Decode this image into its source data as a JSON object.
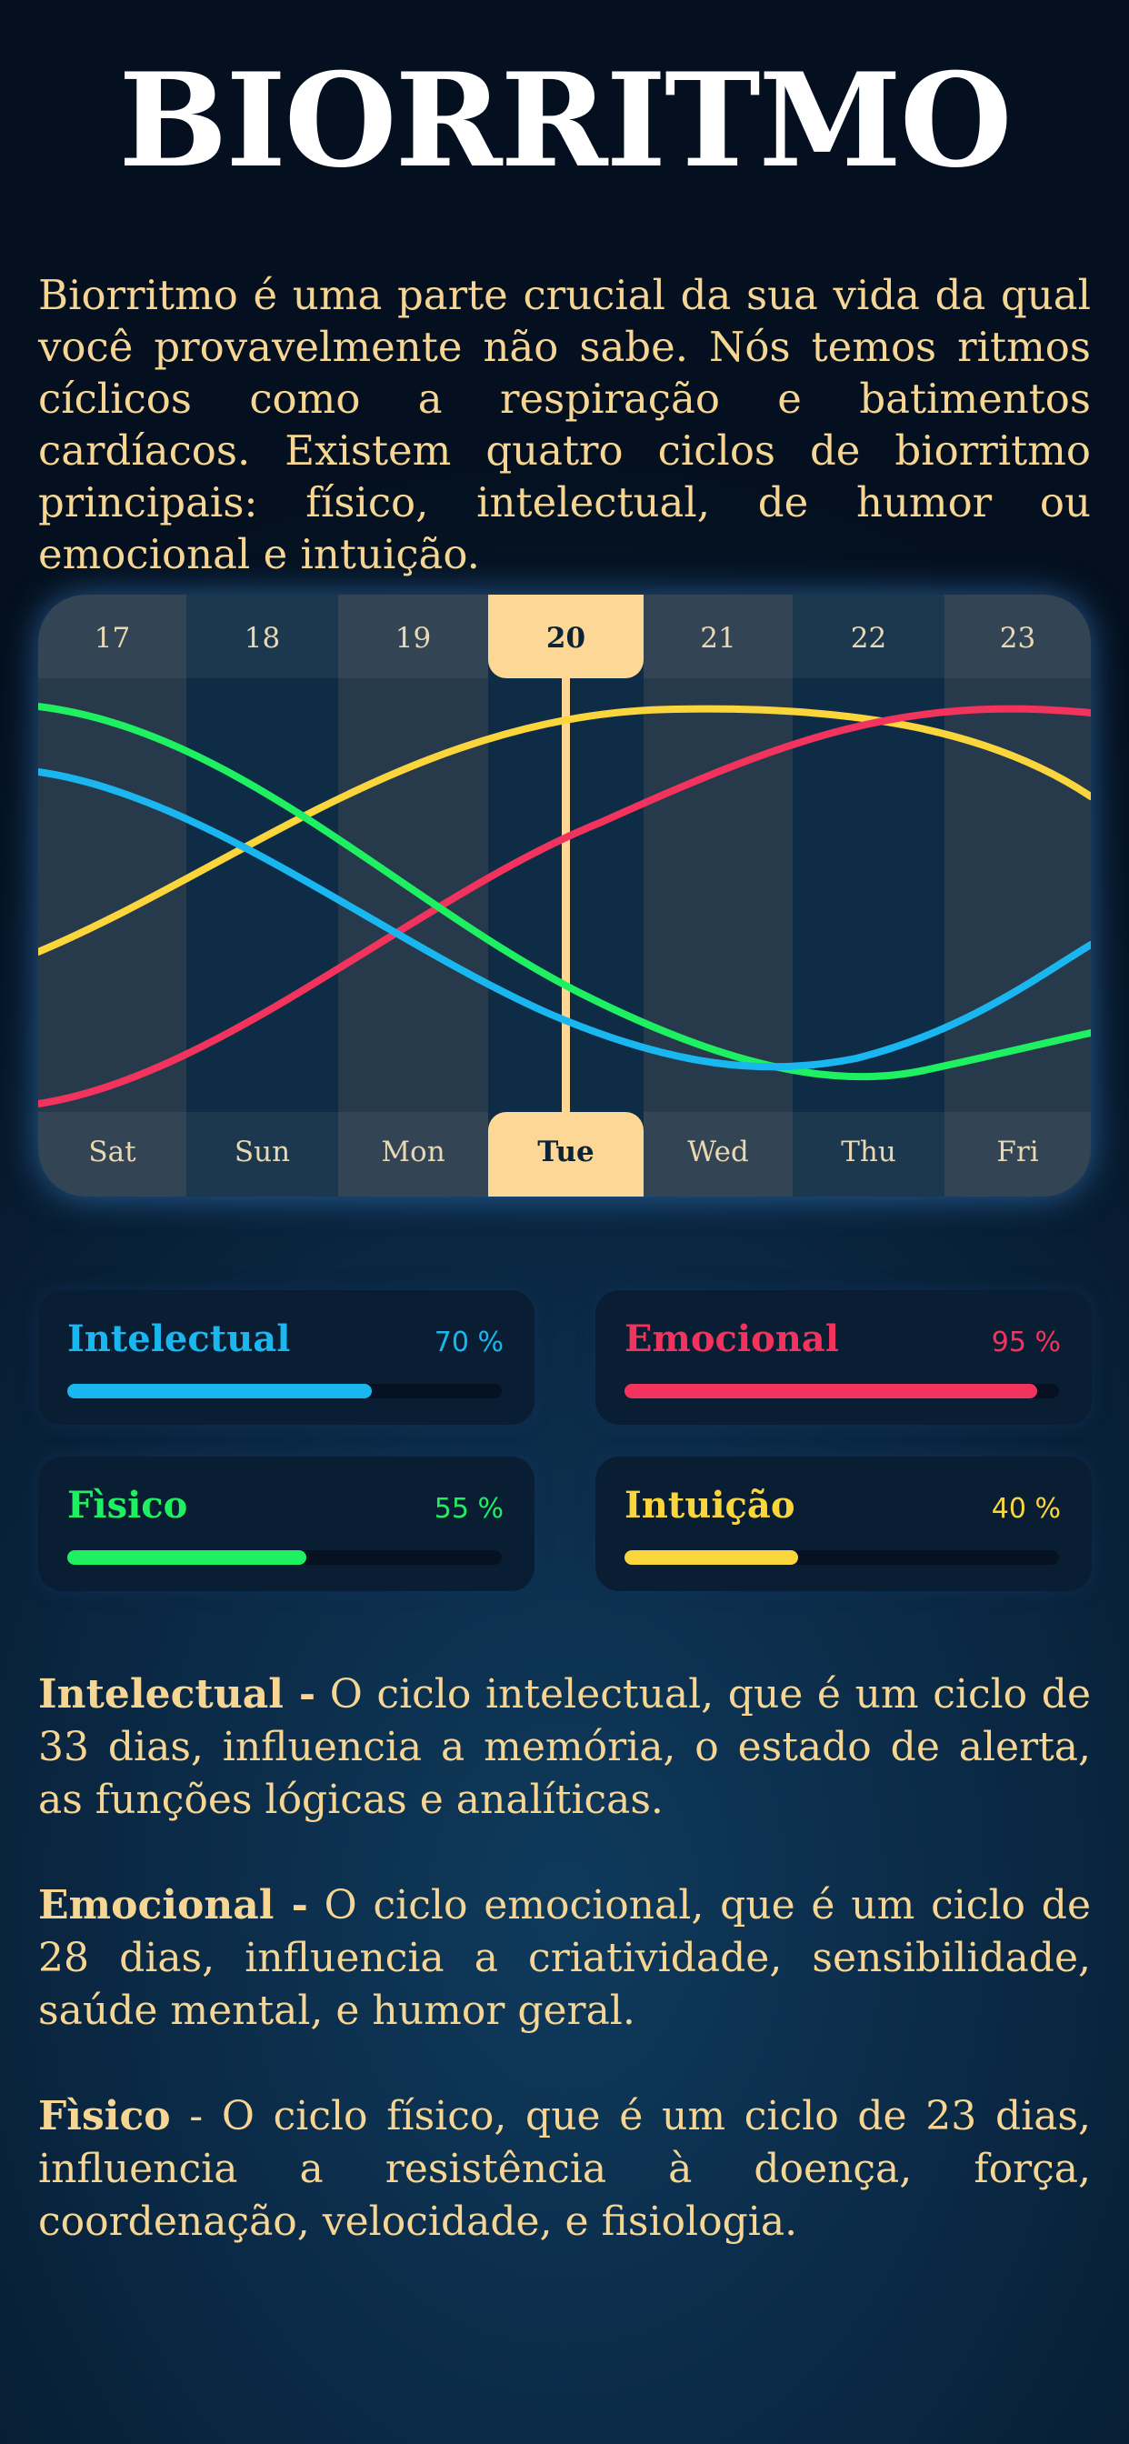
{
  "title": "BIORRITMO",
  "intro": "Biorritmo é uma parte crucial da sua vida da qual você provavelmente não sabe. Nós temos ritmos cíclicos como a respiração e batimentos cardíacos. Existem quatro ciclos de biorritmo principais: físico, intelectual, de humor ou emocional e intuição.",
  "chart": {
    "dates": [
      "17",
      "18",
      "19",
      "20",
      "21",
      "22",
      "23"
    ],
    "weekdays": [
      "Sat",
      "Sun",
      "Mon",
      "Tue",
      "Wed",
      "Thu",
      "Fri"
    ],
    "selected_index": 3
  },
  "colors": {
    "intelectual": "#1ab6f0",
    "emocional": "#f2335e",
    "fisico": "#1ff061",
    "intuicao": "#fbd53c",
    "accent": "#fcd795",
    "text": "#f7d693"
  },
  "stats": [
    {
      "name": "Intelectual",
      "value_label": "70 %",
      "value": 0.7,
      "color": "#1ab6f0"
    },
    {
      "name": "Emocional",
      "value_label": "95 %",
      "value": 0.95,
      "color": "#f2335e"
    },
    {
      "name": "Fìsico",
      "value_label": "55 %",
      "value": 0.55,
      "color": "#1ff061"
    },
    {
      "name": "Intuição",
      "value_label": "40 %",
      "value": 0.4,
      "color": "#fbd53c"
    }
  ],
  "descriptions": [
    {
      "term": "Intelectual -",
      "text": " O ciclo intelectual, que é um ciclo de 33 dias, influencia a memória, o estado de alerta, as funções lógicas e analíticas."
    },
    {
      "term": "Emocional -",
      "text": " O ciclo emocional, que é um ciclo de 28 dias, influencia a criatividade, sensibilidade, saúde mental, e humor geral."
    },
    {
      "term": "Fìsico",
      "text": " - O ciclo físico, que é um ciclo de 23 dias, influencia a resistência à doença, força, coordenação, velocidade, e fisiologia."
    }
  ]
}
